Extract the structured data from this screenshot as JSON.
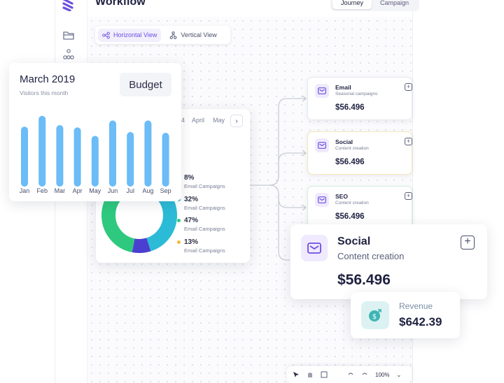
{
  "app": {
    "title": "Workflow"
  },
  "top_tabs": [
    {
      "label": "Journey",
      "active": true
    },
    {
      "label": "Campaign",
      "active": false
    }
  ],
  "view_toggle": [
    {
      "label": "Horizontal View",
      "active": true,
      "icon": "horizontal-flow-icon"
    },
    {
      "label": "Vertical View",
      "active": false,
      "icon": "vertical-flow-icon"
    }
  ],
  "sidebar": {
    "items": [
      {
        "icon": "folder-icon"
      },
      {
        "icon": "hierarchy-icon"
      }
    ]
  },
  "visitors_card": {
    "title": "March 2019",
    "subtitle": "Visitors this month",
    "budget_label": "Budget"
  },
  "chart_data": {
    "type": "bar",
    "categories": [
      "Jan",
      "Feb",
      "Mar",
      "Apr",
      "May",
      "Jun",
      "Jul",
      "Aug",
      "Sep"
    ],
    "values": [
      78,
      92,
      80,
      77,
      66,
      86,
      71,
      86,
      70
    ],
    "color": "#6bbcf7",
    "title": "March 2019",
    "subtitle": "Visitors this month",
    "ylim": [
      0,
      100
    ],
    "grid": false
  },
  "month_nav": {
    "months": [
      "4",
      "April",
      "May"
    ],
    "next_icon": "chevron-right-icon"
  },
  "donut": {
    "segments": [
      {
        "pct": "8%",
        "label": "Email Campaigns",
        "value": 8,
        "color": "#4b3fd0"
      },
      {
        "pct": "32%",
        "label": "Email Campaigns",
        "value": 32,
        "color": "#2bbbd6"
      },
      {
        "pct": "47%",
        "label": "Email Campaigns",
        "value": 47,
        "color": "#2ec97e"
      },
      {
        "pct": "13%",
        "label": "Email Campaigns",
        "value": 13,
        "color": "#f7b93a"
      }
    ]
  },
  "nodes": [
    {
      "title": "Email",
      "subtitle": "Seasonal campaigns",
      "value": "$56.496",
      "accent": "#e6e8ef"
    },
    {
      "title": "Social",
      "subtitle": "Content creation",
      "value": "$56.496",
      "accent": "#f3e6b8"
    },
    {
      "title": "SEO",
      "subtitle": "Content creation",
      "value": "$56.496",
      "accent": "#d4eed9"
    }
  ],
  "social_card": {
    "title": "Social",
    "subtitle": "Content creation",
    "value": "$56.496"
  },
  "revenue_card": {
    "label": "Revenue",
    "value": "$642.39"
  },
  "toolbar": {
    "zoom": "100%"
  },
  "colors": {
    "brand": "#6b4fe0",
    "bar": "#6bbcf7",
    "icon_bg": "#efeafd"
  }
}
